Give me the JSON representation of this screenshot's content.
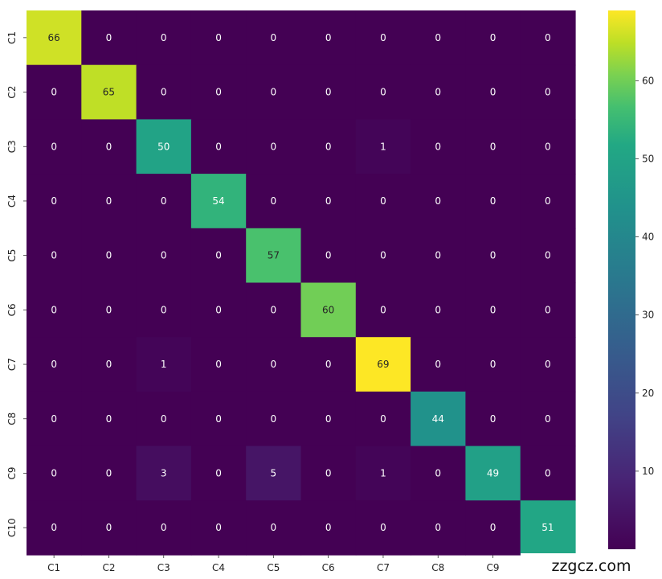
{
  "chart_data": {
    "type": "heatmap",
    "colormap": "viridis",
    "x_labels": [
      "C1",
      "C2",
      "C3",
      "C4",
      "C5",
      "C6",
      "C7",
      "C8",
      "C9",
      "C10"
    ],
    "y_labels": [
      "C1",
      "C2",
      "C3",
      "C4",
      "C5",
      "C6",
      "C7",
      "C8",
      "C9",
      "C10"
    ],
    "matrix": [
      [
        66,
        0,
        0,
        0,
        0,
        0,
        0,
        0,
        0,
        0
      ],
      [
        0,
        65,
        0,
        0,
        0,
        0,
        0,
        0,
        0,
        0
      ],
      [
        0,
        0,
        50,
        0,
        0,
        0,
        1,
        0,
        0,
        0
      ],
      [
        0,
        0,
        0,
        54,
        0,
        0,
        0,
        0,
        0,
        0
      ],
      [
        0,
        0,
        0,
        0,
        57,
        0,
        0,
        0,
        0,
        0
      ],
      [
        0,
        0,
        0,
        0,
        0,
        60,
        0,
        0,
        0,
        0
      ],
      [
        0,
        0,
        1,
        0,
        0,
        0,
        69,
        0,
        0,
        0
      ],
      [
        0,
        0,
        0,
        0,
        0,
        0,
        0,
        44,
        0,
        0
      ],
      [
        0,
        0,
        3,
        0,
        5,
        0,
        1,
        0,
        49,
        0
      ],
      [
        0,
        0,
        0,
        0,
        0,
        0,
        0,
        0,
        0,
        51
      ]
    ],
    "vmin": 0,
    "vmax": 69,
    "colorbar_ticks": [
      10,
      20,
      30,
      40,
      50,
      60
    ],
    "annotations": true,
    "grid": false
  },
  "watermark": {
    "text": "zzgcz.com"
  }
}
